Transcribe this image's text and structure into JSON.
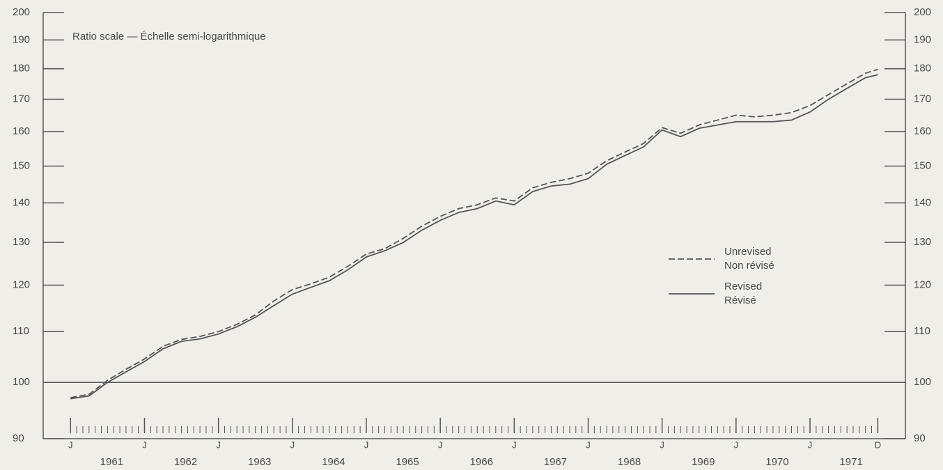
{
  "chart_data": {
    "type": "line",
    "annotation": "Ratio scale — Échelle semi-logarithmique",
    "yscale": "log",
    "ylim": [
      90,
      200
    ],
    "yticks": [
      90,
      100,
      110,
      120,
      130,
      140,
      150,
      160,
      170,
      180,
      190,
      200
    ],
    "y2lim": [
      90,
      200
    ],
    "y2ticks": [
      90,
      100,
      110,
      120,
      130,
      140,
      150,
      160,
      170,
      180,
      190,
      200
    ],
    "xlim": [
      1960.63,
      1972.29
    ],
    "xticks": [
      {
        "value": 1961,
        "label": "J"
      },
      {
        "value": 1962,
        "label": "J"
      },
      {
        "value": 1963,
        "label": "J"
      },
      {
        "value": 1964,
        "label": "J"
      },
      {
        "value": 1965,
        "label": "J"
      },
      {
        "value": 1966,
        "label": "J"
      },
      {
        "value": 1967,
        "label": "J"
      },
      {
        "value": 1968,
        "label": "J"
      },
      {
        "value": 1969,
        "label": "J"
      },
      {
        "value": 1970,
        "label": "J"
      },
      {
        "value": 1971,
        "label": "J"
      },
      {
        "value": 1971.917,
        "label": "D"
      }
    ],
    "year_labels": [
      {
        "value": 1961.5,
        "label": "1961"
      },
      {
        "value": 1962.5,
        "label": "1962"
      },
      {
        "value": 1963.5,
        "label": "1963"
      },
      {
        "value": 1964.5,
        "label": "1964"
      },
      {
        "value": 1965.5,
        "label": "1965"
      },
      {
        "value": 1966.5,
        "label": "1966"
      },
      {
        "value": 1967.5,
        "label": "1967"
      },
      {
        "value": 1968.5,
        "label": "1968"
      },
      {
        "value": 1969.5,
        "label": "1969"
      },
      {
        "value": 1970.5,
        "label": "1970"
      },
      {
        "value": 1971.5,
        "label": "1971"
      }
    ],
    "reference_line": 100,
    "x": [
      1961,
      1961.25,
      1961.5,
      1961.75,
      1962,
      1962.25,
      1962.5,
      1962.75,
      1963,
      1963.25,
      1963.5,
      1963.75,
      1964,
      1964.25,
      1964.5,
      1964.75,
      1965,
      1965.25,
      1965.5,
      1965.75,
      1966,
      1966.25,
      1966.5,
      1966.75,
      1967,
      1967.25,
      1967.5,
      1967.75,
      1968,
      1968.25,
      1968.5,
      1968.75,
      1969,
      1969.25,
      1969.5,
      1969.75,
      1970,
      1970.25,
      1970.5,
      1970.75,
      1971,
      1971.25,
      1971.5,
      1971.75,
      1971.917
    ],
    "legend": "right",
    "series": [
      {
        "name": "Unrevised",
        "name_fr": "Non révisé",
        "color": "#555555",
        "dash": true,
        "values": [
          97.2,
          97.8,
          100.4,
          102.5,
          104.5,
          107,
          108.4,
          109,
          110,
          111.5,
          113.5,
          116.5,
          119,
          120.3,
          121.8,
          124.3,
          127.2,
          128.5,
          131,
          134,
          136.5,
          138.5,
          139.5,
          141.3,
          140.5,
          144,
          145.5,
          146.5,
          148,
          151.5,
          154,
          156.5,
          161.2,
          159.5,
          162,
          163.5,
          165,
          164.5,
          165,
          165.8,
          168,
          171.5,
          175,
          178.5,
          179.8
        ]
      },
      {
        "name": "Revised",
        "name_fr": "Révisé",
        "color": "#555555",
        "dash": false,
        "values": [
          97,
          97.5,
          100,
          102,
          104,
          106.5,
          108,
          108.5,
          109.5,
          111,
          113,
          115.5,
          118,
          119.5,
          121,
          123.5,
          126.5,
          128,
          130,
          133,
          135.5,
          137.5,
          138.5,
          140.5,
          139.5,
          143,
          144.5,
          145,
          146.5,
          150.5,
          153,
          155.5,
          160.5,
          158.5,
          161,
          162,
          163,
          163,
          163,
          163.5,
          166,
          170,
          173.5,
          177,
          178
        ]
      }
    ]
  }
}
